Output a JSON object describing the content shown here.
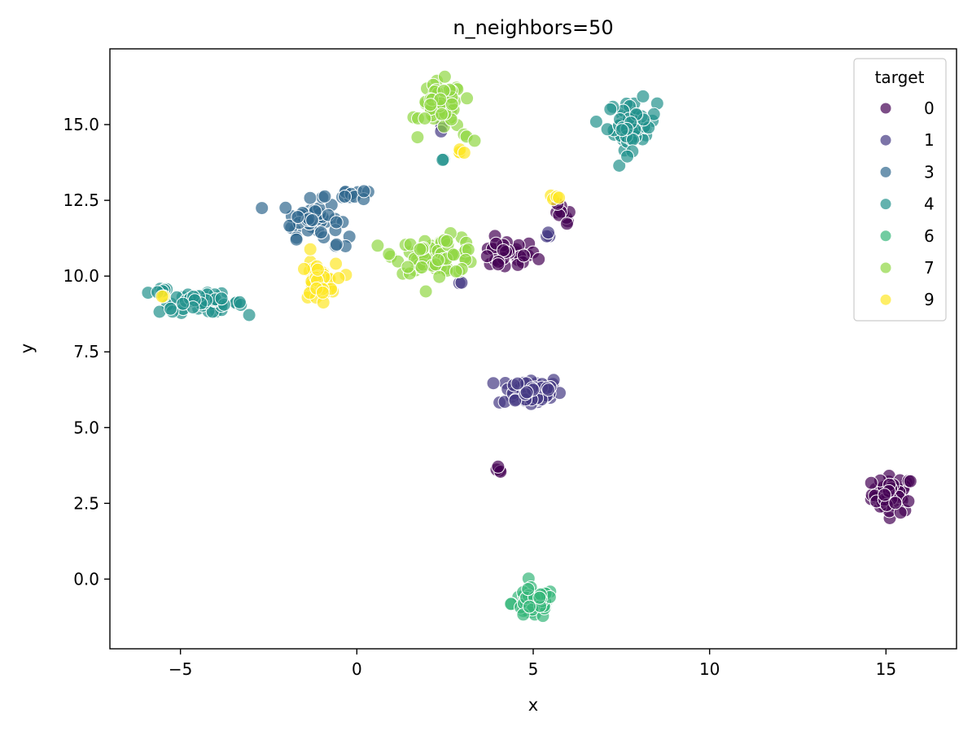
{
  "chart_data": {
    "type": "scatter",
    "title": "n_neighbors=50",
    "xlabel": "x",
    "ylabel": "y",
    "xlim": [
      -7,
      17
    ],
    "ylim": [
      -2.3,
      17.5
    ],
    "xticks": [
      -5,
      0,
      5,
      10,
      15
    ],
    "xtick_labels": [
      "−5",
      "0",
      "5",
      "10",
      "15"
    ],
    "yticks": [
      0.0,
      2.5,
      5.0,
      7.5,
      10.0,
      12.5,
      15.0
    ],
    "ytick_labels": [
      "0.0",
      "2.5",
      "5.0",
      "7.5",
      "10.0",
      "12.5",
      "15.0"
    ],
    "grid": false,
    "legend": {
      "title": "target",
      "position": "top-right",
      "entries": [
        {
          "label": "0",
          "color": "#440154"
        },
        {
          "label": "1",
          "color": "#443983"
        },
        {
          "label": "3",
          "color": "#31688e"
        },
        {
          "label": "4",
          "color": "#21918c"
        },
        {
          "label": "6",
          "color": "#35b779"
        },
        {
          "label": "7",
          "color": "#90d743"
        },
        {
          "label": "9",
          "color": "#fde725"
        }
      ]
    },
    "clusters": [
      {
        "label": "0",
        "cx": 15.2,
        "cy": 2.8,
        "sx": 0.3,
        "sy": 0.3,
        "n": 55
      },
      {
        "label": "0",
        "cx": 4.2,
        "cy": 10.7,
        "sx": 0.45,
        "sy": 0.25,
        "n": 30
      },
      {
        "label": "0",
        "cx": 5.8,
        "cy": 11.9,
        "sx": 0.15,
        "sy": 0.25,
        "n": 10
      },
      {
        "label": "0",
        "cx": 4.1,
        "cy": 3.6,
        "sx": 0.08,
        "sy": 0.05,
        "n": 4
      },
      {
        "label": "1",
        "cx": 4.9,
        "cy": 6.2,
        "sx": 0.45,
        "sy": 0.25,
        "n": 55
      },
      {
        "label": "1",
        "cx": 2.4,
        "cy": 14.9,
        "sx": 0.08,
        "sy": 0.1,
        "n": 2
      },
      {
        "label": "1",
        "cx": 2.95,
        "cy": 9.75,
        "sx": 0.05,
        "sy": 0.05,
        "n": 2
      },
      {
        "label": "1",
        "cx": 5.6,
        "cy": 11.4,
        "sx": 0.1,
        "sy": 0.1,
        "n": 3
      },
      {
        "label": "3",
        "cx": -1.3,
        "cy": 11.9,
        "sx": 0.4,
        "sy": 0.3,
        "n": 50
      },
      {
        "label": "3",
        "cx": -0.3,
        "cy": 12.7,
        "sx": 0.3,
        "sy": 0.1,
        "n": 12
      },
      {
        "label": "3",
        "cx": -0.6,
        "cy": 11.0,
        "sx": 0.1,
        "sy": 0.05,
        "n": 3
      },
      {
        "label": "4",
        "cx": 7.8,
        "cy": 15.0,
        "sx": 0.35,
        "sy": 0.4,
        "n": 60
      },
      {
        "label": "4",
        "cx": -4.4,
        "cy": 9.1,
        "sx": 0.6,
        "sy": 0.15,
        "n": 50
      },
      {
        "label": "4",
        "cx": -5.6,
        "cy": 9.5,
        "sx": 0.2,
        "sy": 0.08,
        "n": 6
      },
      {
        "label": "4",
        "cx": 2.4,
        "cy": 13.85,
        "sx": 0.05,
        "sy": 0.03,
        "n": 2
      },
      {
        "label": "6",
        "cx": 5.0,
        "cy": -0.8,
        "sx": 0.3,
        "sy": 0.25,
        "n": 60
      },
      {
        "label": "7",
        "cx": 2.4,
        "cy": 15.6,
        "sx": 0.3,
        "sy": 0.4,
        "n": 55
      },
      {
        "label": "7",
        "cx": 2.3,
        "cy": 10.7,
        "sx": 0.6,
        "sy": 0.3,
        "n": 70
      },
      {
        "label": "7",
        "cx": 3.1,
        "cy": 14.6,
        "sx": 0.1,
        "sy": 0.08,
        "n": 3
      },
      {
        "label": "9",
        "cx": -1.1,
        "cy": 9.8,
        "sx": 0.25,
        "sy": 0.3,
        "n": 45
      },
      {
        "label": "9",
        "cx": 5.6,
        "cy": 12.6,
        "sx": 0.1,
        "sy": 0.06,
        "n": 4
      },
      {
        "label": "9",
        "cx": 2.9,
        "cy": 14.05,
        "sx": 0.1,
        "sy": 0.08,
        "n": 4
      },
      {
        "label": "9",
        "cx": -1.3,
        "cy": 10.9,
        "sx": 0.05,
        "sy": 0.05,
        "n": 1
      },
      {
        "label": "9",
        "cx": -5.5,
        "cy": 9.25,
        "sx": 0.05,
        "sy": 0.05,
        "n": 2
      }
    ]
  }
}
